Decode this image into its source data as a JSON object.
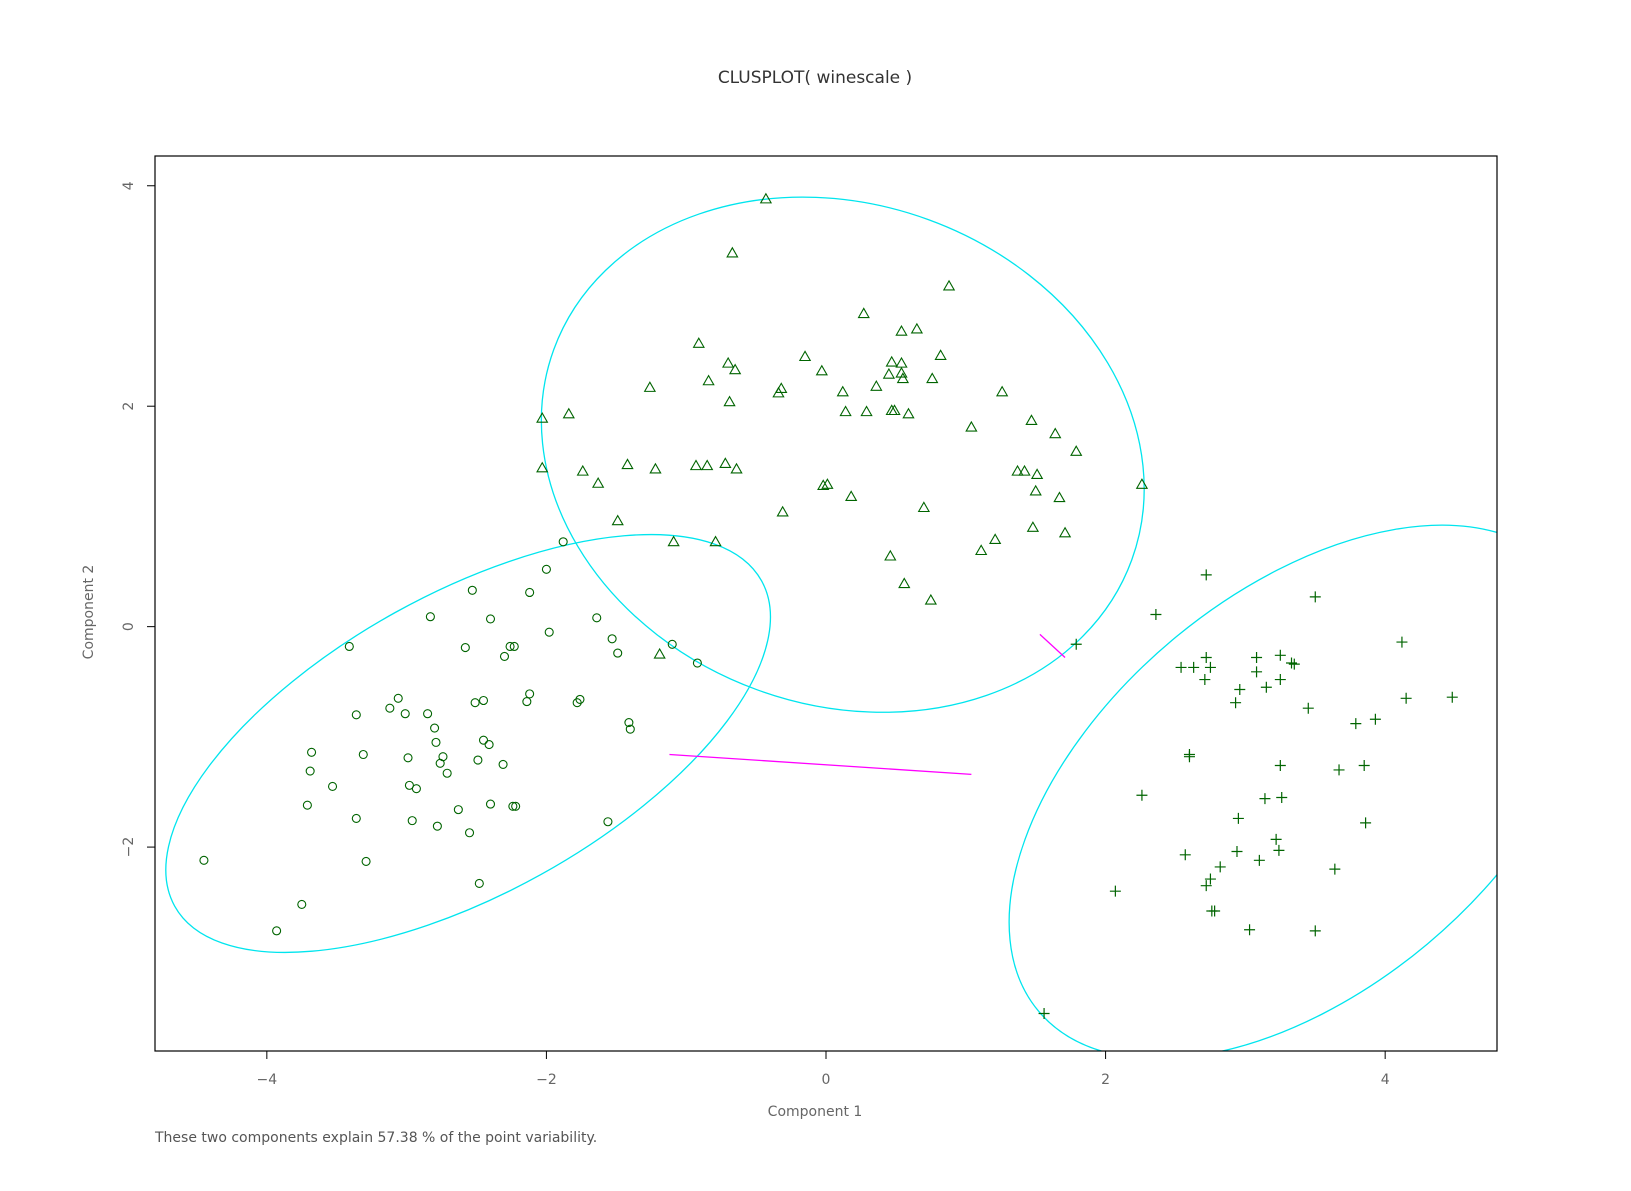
{
  "chart_data": {
    "type": "scatter",
    "title": "CLUSPLOT( winescale )",
    "xlabel": "Component 1",
    "ylabel": "Component 2",
    "note": "These two components explain 57.38 % of the point variability.",
    "xlim": [
      -4.8,
      4.8
    ],
    "ylim": [
      -3.85,
      4.27
    ],
    "xticks": [
      -4,
      -2,
      0,
      2,
      4
    ],
    "yticks": [
      -2,
      0,
      2,
      4
    ],
    "xtick_labels": [
      "−4",
      "−2",
      "0",
      "2",
      "4"
    ],
    "ytick_labels": [
      "−2",
      "0",
      "2",
      "4"
    ],
    "grid": false,
    "colors": {
      "points": "#006400",
      "ellipse": "#00e5ee",
      "connector": "#ff00ff",
      "axis": "#000000",
      "text": "#666666"
    },
    "clusters": [
      {
        "marker": "circle",
        "ellipse": {
          "cx": -2.56,
          "cy": -1.06,
          "rx": 2.4,
          "ry": 1.36,
          "angle_deg": 29
        },
        "points": [
          [
            -4.45,
            -2.12
          ],
          [
            -3.93,
            -2.76
          ],
          [
            -3.75,
            -2.52
          ],
          [
            -3.71,
            -1.62
          ],
          [
            -3.69,
            -1.31
          ],
          [
            -3.68,
            -1.14
          ],
          [
            -3.53,
            -1.45
          ],
          [
            -3.41,
            -0.18
          ],
          [
            -3.36,
            -0.8
          ],
          [
            -3.36,
            -1.74
          ],
          [
            -3.31,
            -1.16
          ],
          [
            -3.29,
            -2.13
          ],
          [
            -3.12,
            -0.74
          ],
          [
            -3.06,
            -0.65
          ],
          [
            -3.01,
            -0.79
          ],
          [
            -2.99,
            -1.19
          ],
          [
            -2.98,
            -1.44
          ],
          [
            -2.96,
            -1.76
          ],
          [
            -2.93,
            -1.47
          ],
          [
            -2.85,
            -0.79
          ],
          [
            -2.83,
            0.09
          ],
          [
            -2.8,
            -0.92
          ],
          [
            -2.79,
            -1.05
          ],
          [
            -2.78,
            -1.81
          ],
          [
            -2.76,
            -1.24
          ],
          [
            -2.74,
            -1.18
          ],
          [
            -2.71,
            -1.33
          ],
          [
            -2.63,
            -1.66
          ],
          [
            -2.58,
            -0.19
          ],
          [
            -2.55,
            -1.87
          ],
          [
            -2.53,
            0.33
          ],
          [
            -2.51,
            -0.69
          ],
          [
            -2.49,
            -1.21
          ],
          [
            -2.48,
            -2.33
          ],
          [
            -2.45,
            -0.67
          ],
          [
            -2.45,
            -1.03
          ],
          [
            -2.41,
            -1.07
          ],
          [
            -2.4,
            0.07
          ],
          [
            -2.4,
            -1.61
          ],
          [
            -2.31,
            -1.25
          ],
          [
            -2.3,
            -0.27
          ],
          [
            -2.26,
            -0.18
          ],
          [
            -2.23,
            -0.18
          ],
          [
            -2.24,
            -1.63
          ],
          [
            -2.22,
            -1.63
          ],
          [
            -2.14,
            -0.68
          ],
          [
            -2.12,
            0.31
          ],
          [
            -2.12,
            -0.61
          ],
          [
            -2.0,
            0.52
          ],
          [
            -1.98,
            -0.05
          ],
          [
            -1.88,
            0.77
          ],
          [
            -1.78,
            -0.69
          ],
          [
            -1.76,
            -0.66
          ],
          [
            -1.64,
            0.08
          ],
          [
            -1.56,
            -1.77
          ],
          [
            -1.53,
            -0.11
          ],
          [
            -1.49,
            -0.24
          ],
          [
            -1.41,
            -0.87
          ],
          [
            -1.4,
            -0.93
          ],
          [
            -1.1,
            -0.16
          ],
          [
            -0.92,
            -0.33
          ]
        ]
      },
      {
        "marker": "triangle",
        "ellipse": {
          "cx": 0.12,
          "cy": 1.56,
          "rx": 2.2,
          "ry": 2.27,
          "angle_deg": -20
        },
        "points": [
          [
            -0.43,
            3.88
          ],
          [
            -0.67,
            3.39
          ],
          [
            0.88,
            3.09
          ],
          [
            0.27,
            2.84
          ],
          [
            0.54,
            2.68
          ],
          [
            0.65,
            2.7
          ],
          [
            -0.91,
            2.57
          ],
          [
            0.82,
            2.46
          ],
          [
            -0.15,
            2.45
          ],
          [
            -0.7,
            2.39
          ],
          [
            0.47,
            2.4
          ],
          [
            0.54,
            2.39
          ],
          [
            -0.65,
            2.33
          ],
          [
            -0.03,
            2.32
          ],
          [
            0.45,
            2.29
          ],
          [
            0.54,
            2.3
          ],
          [
            0.55,
            2.25
          ],
          [
            -0.84,
            2.23
          ],
          [
            0.76,
            2.25
          ],
          [
            0.36,
            2.18
          ],
          [
            -1.26,
            2.17
          ],
          [
            -0.32,
            2.16
          ],
          [
            -0.34,
            2.12
          ],
          [
            0.12,
            2.13
          ],
          [
            1.26,
            2.13
          ],
          [
            -0.69,
            2.04
          ],
          [
            0.14,
            1.95
          ],
          [
            0.29,
            1.95
          ],
          [
            0.47,
            1.96
          ],
          [
            0.49,
            1.96
          ],
          [
            0.59,
            1.93
          ],
          [
            -1.84,
            1.93
          ],
          [
            -2.03,
            1.89
          ],
          [
            1.47,
            1.87
          ],
          [
            1.04,
            1.81
          ],
          [
            1.64,
            1.75
          ],
          [
            1.79,
            1.59
          ],
          [
            -1.42,
            1.47
          ],
          [
            -0.93,
            1.46
          ],
          [
            -0.85,
            1.46
          ],
          [
            -0.72,
            1.48
          ],
          [
            -0.64,
            1.43
          ],
          [
            -1.22,
            1.43
          ],
          [
            -2.03,
            1.44
          ],
          [
            -1.74,
            1.41
          ],
          [
            1.37,
            1.41
          ],
          [
            1.42,
            1.41
          ],
          [
            1.51,
            1.38
          ],
          [
            -1.63,
            1.3
          ],
          [
            -0.02,
            1.28
          ],
          [
            0.01,
            1.29
          ],
          [
            0.18,
            1.18
          ],
          [
            1.5,
            1.23
          ],
          [
            1.67,
            1.17
          ],
          [
            2.26,
            1.29
          ],
          [
            0.7,
            1.08
          ],
          [
            -0.31,
            1.04
          ],
          [
            -1.49,
            0.96
          ],
          [
            1.48,
            0.9
          ],
          [
            1.71,
            0.85
          ],
          [
            -1.09,
            0.77
          ],
          [
            -0.79,
            0.77
          ],
          [
            1.21,
            0.79
          ],
          [
            1.11,
            0.69
          ],
          [
            0.46,
            0.64
          ],
          [
            0.56,
            0.39
          ],
          [
            0.75,
            0.24
          ],
          [
            -1.19,
            -0.25
          ]
        ]
      },
      {
        "marker": "plus",
        "ellipse": {
          "cx": 3.39,
          "cy": -1.5,
          "rx": 2.44,
          "ry": 1.8,
          "angle_deg": 40
        },
        "points": [
          [
            2.72,
            0.47
          ],
          [
            3.5,
            0.27
          ],
          [
            2.36,
            0.11
          ],
          [
            1.79,
            -0.16
          ],
          [
            4.12,
            -0.14
          ],
          [
            2.72,
            -0.28
          ],
          [
            3.08,
            -0.28
          ],
          [
            3.25,
            -0.26
          ],
          [
            3.33,
            -0.33
          ],
          [
            3.35,
            -0.34
          ],
          [
            2.54,
            -0.37
          ],
          [
            2.63,
            -0.37
          ],
          [
            2.75,
            -0.37
          ],
          [
            3.08,
            -0.41
          ],
          [
            2.71,
            -0.48
          ],
          [
            3.25,
            -0.48
          ],
          [
            2.96,
            -0.57
          ],
          [
            3.15,
            -0.55
          ],
          [
            4.15,
            -0.65
          ],
          [
            4.48,
            -0.64
          ],
          [
            2.93,
            -0.69
          ],
          [
            3.45,
            -0.74
          ],
          [
            3.93,
            -0.84
          ],
          [
            3.79,
            -0.88
          ],
          [
            2.6,
            -1.16
          ],
          [
            2.6,
            -1.18
          ],
          [
            3.25,
            -1.26
          ],
          [
            3.85,
            -1.26
          ],
          [
            3.67,
            -1.3
          ],
          [
            2.26,
            -1.53
          ],
          [
            3.14,
            -1.56
          ],
          [
            3.26,
            -1.55
          ],
          [
            2.95,
            -1.74
          ],
          [
            3.86,
            -1.78
          ],
          [
            3.22,
            -1.93
          ],
          [
            2.57,
            -2.07
          ],
          [
            2.94,
            -2.04
          ],
          [
            3.24,
            -2.03
          ],
          [
            3.1,
            -2.12
          ],
          [
            2.82,
            -2.18
          ],
          [
            3.64,
            -2.2
          ],
          [
            2.75,
            -2.29
          ],
          [
            2.72,
            -2.35
          ],
          [
            2.07,
            -2.4
          ],
          [
            2.76,
            -2.58
          ],
          [
            2.78,
            -2.58
          ],
          [
            3.03,
            -2.75
          ],
          [
            3.5,
            -2.76
          ],
          [
            1.56,
            -3.51
          ]
        ]
      }
    ],
    "connectors": [
      {
        "from": [
          -1.12,
          -1.16
        ],
        "to": [
          1.04,
          -1.34
        ]
      },
      {
        "from": [
          1.53,
          -0.07
        ],
        "to": [
          1.71,
          -0.28
        ]
      }
    ]
  }
}
